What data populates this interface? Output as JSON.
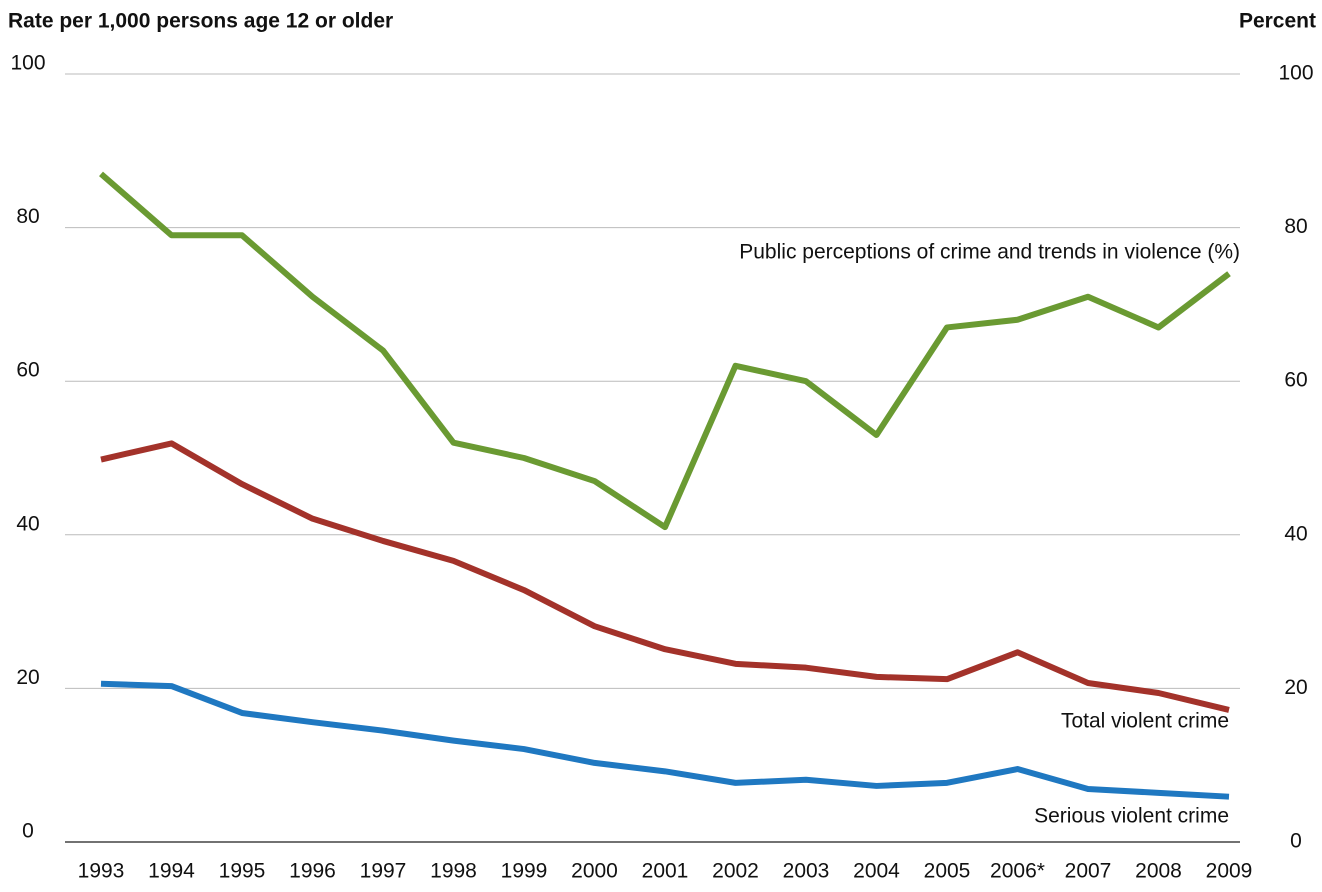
{
  "chart_data": {
    "type": "line",
    "y_label": "Rate per 1,000 persons age 12 or older",
    "y2_label": "Percent",
    "categories": [
      "1993",
      "1994",
      "1995",
      "1996",
      "1997",
      "1998",
      "1999",
      "2000",
      "2001",
      "2002",
      "2003",
      "2004",
      "2005",
      "2006*",
      "2007",
      "2008",
      "2009"
    ],
    "series": [
      {
        "name": "Public perceptions of crime and trends in violence (%)",
        "color": "#6a9a32",
        "axis": "y2",
        "values": [
          87,
          79,
          79,
          71,
          64,
          52,
          50,
          47,
          41,
          62,
          60,
          53,
          67,
          68,
          71,
          67,
          74
        ]
      },
      {
        "name": "Total violent crime",
        "color": "#a3322a",
        "values": [
          49.8,
          51.9,
          46.6,
          42.1,
          39.2,
          36.6,
          32.8,
          28.1,
          25.1,
          23.2,
          22.7,
          21.5,
          21.2,
          24.7,
          20.7,
          19.4,
          17.2
        ]
      },
      {
        "name": "Serious violent crime",
        "color": "#1f78c1",
        "values": [
          20.6,
          20.3,
          16.8,
          15.6,
          14.5,
          13.2,
          12.1,
          10.3,
          9.2,
          7.7,
          8.1,
          7.3,
          7.7,
          9.5,
          6.9,
          6.4,
          5.9
        ]
      }
    ],
    "ylim": [
      0,
      100
    ],
    "yticks": [
      0,
      20,
      40,
      60,
      80,
      100
    ],
    "y2lim": [
      0,
      100
    ],
    "y2ticks": [
      0,
      20,
      40,
      60,
      80,
      100
    ],
    "grid": true
  }
}
